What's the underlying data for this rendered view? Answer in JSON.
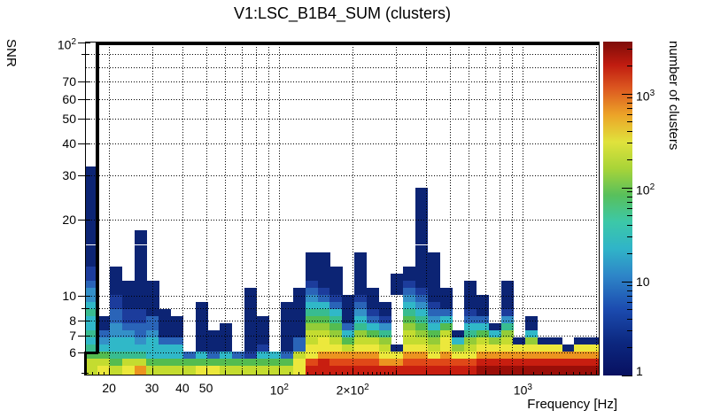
{
  "title": "V1:LSC_B1B4_SUM (clusters)",
  "axes": {
    "x_label": "Frequency [Hz]",
    "y_label": "SNR",
    "z_label": "number of clusters",
    "x_ticks": [
      {
        "v": 20,
        "t": "20"
      },
      {
        "v": 30,
        "t": "30"
      },
      {
        "v": 40,
        "t": "40"
      },
      {
        "v": 50,
        "t": "50"
      },
      {
        "v": 100,
        "t": "10",
        "s": "2"
      },
      {
        "v": 200,
        "t": "2×10",
        "s": "2"
      },
      {
        "v": 1000,
        "t": "10",
        "s": "3"
      }
    ],
    "x_minor_ticks": [
      60,
      70,
      80,
      90,
      300,
      400,
      500,
      600,
      700,
      800,
      900,
      2000
    ],
    "x_small_ticks": [
      17,
      18,
      19,
      110,
      120,
      130,
      140,
      150,
      160,
      170,
      180,
      190,
      210,
      220,
      230,
      240,
      250,
      260,
      270,
      280,
      290,
      1100,
      1200,
      1300,
      1400,
      1500,
      1600,
      1700,
      1800,
      1900
    ],
    "y_ticks": [
      {
        "v": 6,
        "t": "6"
      },
      {
        "v": 7,
        "t": "7"
      },
      {
        "v": 8,
        "t": "8"
      },
      {
        "v": 10,
        "t": "10"
      },
      {
        "v": 20,
        "t": "20"
      },
      {
        "v": 30,
        "t": "30"
      },
      {
        "v": 40,
        "t": "40"
      },
      {
        "v": 50,
        "t": "50"
      },
      {
        "v": 60,
        "t": "60"
      },
      {
        "v": 70,
        "t": "70"
      },
      {
        "v": 100,
        "t": "10",
        "s": "2"
      }
    ],
    "y_minor_ticks": [
      5,
      9,
      90
    ],
    "z_ticks": [
      {
        "v": 1,
        "t": "1"
      },
      {
        "v": 10,
        "t": "10"
      },
      {
        "v": 100,
        "t": "10",
        "s": "2"
      },
      {
        "v": 1000,
        "t": "10",
        "s": "3"
      }
    ],
    "z_minor_ticks": [
      2,
      3,
      4,
      5,
      6,
      7,
      8,
      9,
      20,
      30,
      40,
      50,
      60,
      70,
      80,
      90,
      200,
      300,
      400,
      500,
      600,
      700,
      800,
      900,
      2000,
      3000
    ],
    "grid_x": [
      20,
      30,
      40,
      50,
      60,
      70,
      80,
      90,
      100,
      200,
      300,
      400,
      500,
      600,
      700,
      800,
      900,
      1000,
      2000
    ],
    "grid_y": [
      6,
      7,
      8,
      9,
      10,
      20,
      30,
      40,
      50,
      60,
      70,
      80,
      90
    ]
  },
  "chart_data": {
    "type": "heatmap",
    "title": "V1:LSC_B1B4_SUM (clusters)",
    "xlabel": "Frequency [Hz]",
    "ylabel": "SNR",
    "zlabel": "number of clusters",
    "x_range_hz": [
      16,
      2048
    ],
    "y_range_snr": [
      4.9,
      100
    ],
    "z_range_clusters": [
      1,
      3500
    ],
    "x_scale": "log",
    "y_scale": "log",
    "z_scale": "log",
    "freq_bins": {
      "base_hz": 16,
      "ratio": 1.1224,
      "count": 42
    },
    "snr_bins": {
      "base_snr": 5.0,
      "ratio": 1.067
    },
    "palette": {
      "a": "#9a0e08",
      "b": "#c81e10",
      "c": "#e04818",
      "d": "#ec9420",
      "e": "#ece83c",
      "f": "#c4dc30",
      "g": "#94cc38",
      "h": "#54bc50",
      "i": "#38bc90",
      "j": "#30b8c8",
      "k": "#3490c8",
      "l": "#2a64b8",
      "m": "#1c3c9c",
      "n": "#0c2474"
    },
    "palette_cluster_counts": {
      "a": 2000,
      "b": 1000,
      "c": 500,
      "d": 250,
      "e": 120,
      "f": 70,
      "g": 40,
      "h": 25,
      "i": 14,
      "j": 8,
      "k": 5,
      "l": 3,
      "m": 2,
      "n": 1
    },
    "columns_note": "one string per frequency bin, chars are SNR rows bottom-to-top (w = empty)",
    "columns": [
      "ffhijijjijkklmmnnnnnnnnnnnnnn",
      "efhjklnn",
      "fhijjkkllmmnnnn",
      "efijjklmmnnnn",
      "dfijkllmmnnnnnnnnnnn",
      "fhjjjkllnnnnn",
      "fhjjlnnnn",
      "fhjjlnnn",
      "fhl",
      "ehjnnnnnnn",
      "ehlnnn",
      "fhjnnnn",
      "fhl",
      "fhmnnnnnnnnn",
      "fhjmnnnn",
      "fhj",
      "fhlnnnnnnn",
      "eefllnnnnnnn",
      "bceeffghijklmnnnn",
      "bbdeefghijlmnnnnn",
      "bcdefghijlmnnnn",
      "bcdfhjlnnnn",
      "bcdefgijklmnnnnnn",
      "bcdefhjlmnnn",
      "bdefgikmnn",
      "bdenwwwwwwwnnn",
      "bcdeffghijklmnn",
      "bcdefghijklmnnnnnnnnnnnnnn",
      "bcefghjklmnnnnnnn",
      "bcdeefhjlnnn",
      "bcegjn",
      "bcefgijlmnnnn",
      "abdefhjlnnn",
      "abdegjn",
      "abdefgikmnnnn",
      "abden",
      "abdegjnn",
      "abden",
      "abden",
      "abdn",
      "abden",
      "abden"
    ]
  }
}
